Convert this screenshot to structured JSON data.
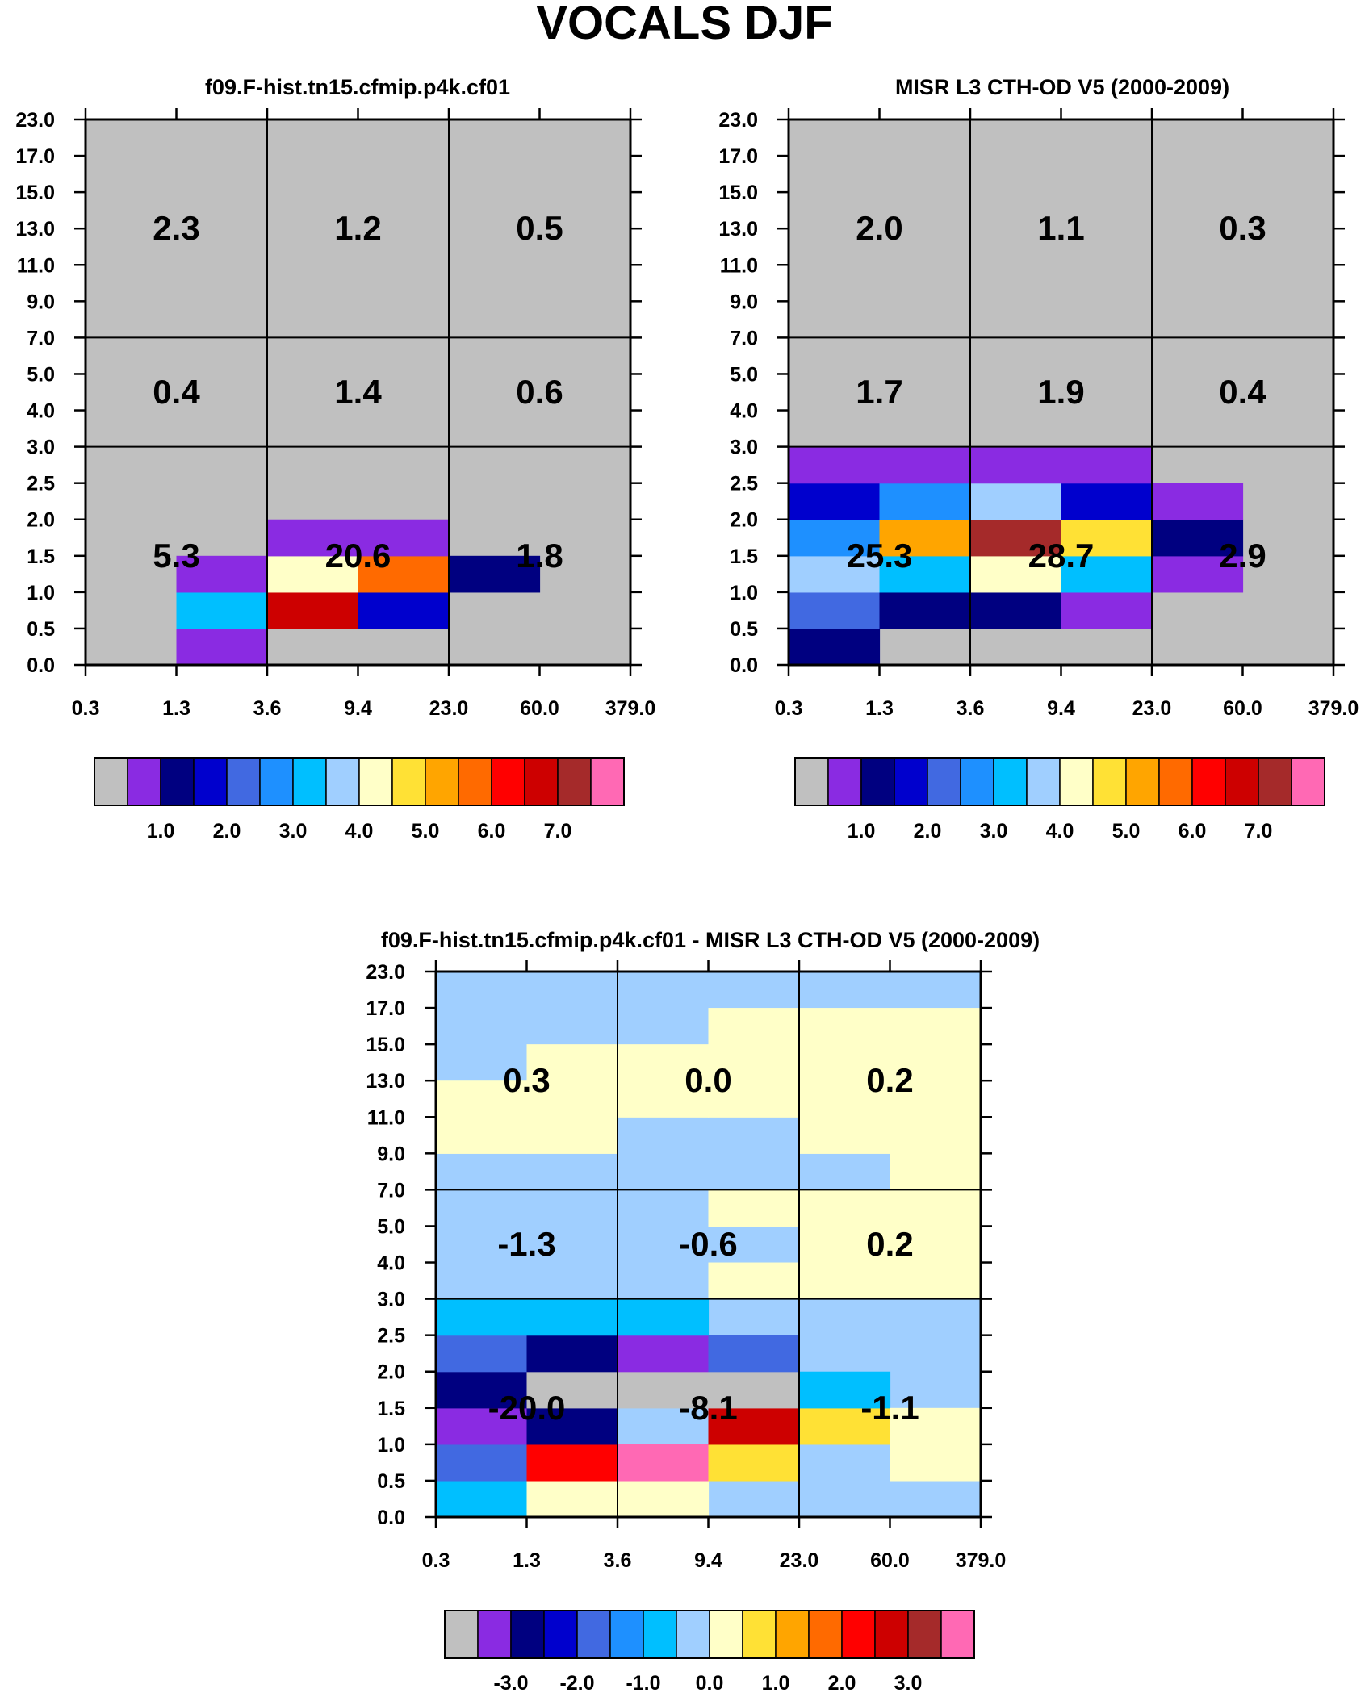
{
  "title": "VOCALS DJF",
  "chart_data": [
    {
      "type": "heatmap",
      "title": "f09.F-hist.tn15.cfmip.p4k.cf01",
      "x_ticks": [
        "0.3",
        "1.3",
        "3.6",
        "9.4",
        "23.0",
        "60.0",
        "379.0"
      ],
      "y_ticks": [
        "0.0",
        "0.5",
        "1.0",
        "1.5",
        "2.0",
        "2.5",
        "3.0",
        "4.0",
        "5.0",
        "7.0",
        "9.0",
        "11.0",
        "13.0",
        "15.0",
        "17.0",
        "23.0"
      ],
      "cells": [
        {
          "c": 1,
          "r": 0,
          "color": "#8a2be2"
        },
        {
          "c": 1,
          "r": 1,
          "color": "#00bfff"
        },
        {
          "c": 1,
          "r": 2,
          "color": "#8a2be2"
        },
        {
          "c": 2,
          "r": 1,
          "color": "#cd0000"
        },
        {
          "c": 2,
          "r": 2,
          "color": "#ffffc8"
        },
        {
          "c": 2,
          "r": 3,
          "color": "#8a2be2"
        },
        {
          "c": 3,
          "r": 1,
          "color": "#0000cd"
        },
        {
          "c": 3,
          "r": 2,
          "color": "#ff6a00"
        },
        {
          "c": 3,
          "r": 3,
          "color": "#8a2be2"
        },
        {
          "c": 4,
          "r": 2,
          "color": "#000080"
        }
      ],
      "region_labels": [
        {
          "col": 0,
          "row": 2,
          "text": "2.3"
        },
        {
          "col": 1,
          "row": 2,
          "text": "1.2"
        },
        {
          "col": 2,
          "row": 2,
          "text": "0.5"
        },
        {
          "col": 0,
          "row": 1,
          "text": "0.4"
        },
        {
          "col": 1,
          "row": 1,
          "text": "1.4"
        },
        {
          "col": 2,
          "row": 1,
          "text": "0.6"
        },
        {
          "col": 0,
          "row": 0,
          "text": "5.3"
        },
        {
          "col": 1,
          "row": 0,
          "text": "20.6"
        },
        {
          "col": 2,
          "row": 0,
          "text": "1.8"
        }
      ],
      "colorbar": {
        "colors": [
          "#c0c0c0",
          "#8a2be2",
          "#000080",
          "#0000cd",
          "#4169e1",
          "#1e90ff",
          "#00bfff",
          "#a0cfff",
          "#ffffc8",
          "#ffe135",
          "#ffa500",
          "#ff6a00",
          "#ff0000",
          "#cd0000",
          "#a52a2a",
          "#ff69b4"
        ],
        "labels": [
          "1.0",
          "2.0",
          "3.0",
          "4.0",
          "5.0",
          "6.0",
          "7.0"
        ]
      }
    },
    {
      "type": "heatmap",
      "title": "MISR L3 CTH-OD V5 (2000-2009)",
      "x_ticks": [
        "0.3",
        "1.3",
        "3.6",
        "9.4",
        "23.0",
        "60.0",
        "379.0"
      ],
      "y_ticks": [
        "0.0",
        "0.5",
        "1.0",
        "1.5",
        "2.0",
        "2.5",
        "3.0",
        "4.0",
        "5.0",
        "7.0",
        "9.0",
        "11.0",
        "13.0",
        "15.0",
        "17.0",
        "23.0"
      ],
      "cells": [
        {
          "c": 0,
          "r": 0,
          "color": "#000080"
        },
        {
          "c": 0,
          "r": 1,
          "color": "#4169e1"
        },
        {
          "c": 0,
          "r": 2,
          "color": "#a0cfff"
        },
        {
          "c": 0,
          "r": 3,
          "color": "#1e90ff"
        },
        {
          "c": 0,
          "r": 4,
          "color": "#0000cd"
        },
        {
          "c": 0,
          "r": 5,
          "color": "#8a2be2"
        },
        {
          "c": 1,
          "r": 1,
          "color": "#000080"
        },
        {
          "c": 1,
          "r": 2,
          "color": "#00bfff"
        },
        {
          "c": 1,
          "r": 3,
          "color": "#ffa500"
        },
        {
          "c": 1,
          "r": 4,
          "color": "#1e90ff"
        },
        {
          "c": 1,
          "r": 5,
          "color": "#8a2be2"
        },
        {
          "c": 2,
          "r": 1,
          "color": "#000080"
        },
        {
          "c": 2,
          "r": 2,
          "color": "#ffffc8"
        },
        {
          "c": 2,
          "r": 3,
          "color": "#a52a2a"
        },
        {
          "c": 2,
          "r": 4,
          "color": "#a0cfff"
        },
        {
          "c": 2,
          "r": 5,
          "color": "#8a2be2"
        },
        {
          "c": 3,
          "r": 1,
          "color": "#8a2be2"
        },
        {
          "c": 3,
          "r": 2,
          "color": "#00bfff"
        },
        {
          "c": 3,
          "r": 3,
          "color": "#ffe135"
        },
        {
          "c": 3,
          "r": 4,
          "color": "#0000cd"
        },
        {
          "c": 3,
          "r": 5,
          "color": "#8a2be2"
        },
        {
          "c": 4,
          "r": 2,
          "color": "#8a2be2"
        },
        {
          "c": 4,
          "r": 3,
          "color": "#000080"
        },
        {
          "c": 4,
          "r": 4,
          "color": "#8a2be2"
        }
      ],
      "region_labels": [
        {
          "col": 0,
          "row": 2,
          "text": "2.0"
        },
        {
          "col": 1,
          "row": 2,
          "text": "1.1"
        },
        {
          "col": 2,
          "row": 2,
          "text": "0.3"
        },
        {
          "col": 0,
          "row": 1,
          "text": "1.7"
        },
        {
          "col": 1,
          "row": 1,
          "text": "1.9"
        },
        {
          "col": 2,
          "row": 1,
          "text": "0.4"
        },
        {
          "col": 0,
          "row": 0,
          "text": "25.3"
        },
        {
          "col": 1,
          "row": 0,
          "text": "28.7"
        },
        {
          "col": 2,
          "row": 0,
          "text": "2.9"
        }
      ],
      "colorbar": {
        "colors": [
          "#c0c0c0",
          "#8a2be2",
          "#000080",
          "#0000cd",
          "#4169e1",
          "#1e90ff",
          "#00bfff",
          "#a0cfff",
          "#ffffc8",
          "#ffe135",
          "#ffa500",
          "#ff6a00",
          "#ff0000",
          "#cd0000",
          "#a52a2a",
          "#ff69b4"
        ],
        "labels": [
          "1.0",
          "2.0",
          "3.0",
          "4.0",
          "5.0",
          "6.0",
          "7.0"
        ]
      }
    },
    {
      "type": "heatmap",
      "title": "f09.F-hist.tn15.cfmip.p4k.cf01 - MISR L3 CTH-OD V5 (2000-2009)",
      "x_ticks": [
        "0.3",
        "1.3",
        "3.6",
        "9.4",
        "23.0",
        "60.0",
        "379.0"
      ],
      "y_ticks": [
        "0.0",
        "0.5",
        "1.0",
        "1.5",
        "2.0",
        "2.5",
        "3.0",
        "4.0",
        "5.0",
        "7.0",
        "9.0",
        "11.0",
        "13.0",
        "15.0",
        "17.0",
        "23.0"
      ],
      "background": "#a0cfff",
      "cells": [
        {
          "c": 0,
          "r": 0,
          "color": "#00bfff"
        },
        {
          "c": 0,
          "r": 1,
          "color": "#4169e1"
        },
        {
          "c": 0,
          "r": 2,
          "color": "#8a2be2"
        },
        {
          "c": 0,
          "r": 3,
          "color": "#000080"
        },
        {
          "c": 0,
          "r": 4,
          "color": "#4169e1"
        },
        {
          "c": 0,
          "r": 5,
          "color": "#00bfff"
        },
        {
          "c": 0,
          "r": 10,
          "color": "#ffffc8"
        },
        {
          "c": 0,
          "r": 11,
          "color": "#ffffc8"
        },
        {
          "c": 1,
          "r": 0,
          "color": "#ffffc8"
        },
        {
          "c": 1,
          "r": 1,
          "color": "#ff0000"
        },
        {
          "c": 1,
          "r": 2,
          "color": "#000080"
        },
        {
          "c": 1,
          "r": 3,
          "color": "#c0c0c0"
        },
        {
          "c": 1,
          "r": 4,
          "color": "#000080"
        },
        {
          "c": 1,
          "r": 5,
          "color": "#00bfff"
        },
        {
          "c": 1,
          "r": 10,
          "color": "#ffffc8"
        },
        {
          "c": 1,
          "r": 11,
          "color": "#ffffc8"
        },
        {
          "c": 1,
          "r": 12,
          "color": "#ffffc8"
        },
        {
          "c": 2,
          "r": 0,
          "color": "#ffffc8"
        },
        {
          "c": 2,
          "r": 1,
          "color": "#ff69b4"
        },
        {
          "c": 2,
          "r": 3,
          "color": "#c0c0c0"
        },
        {
          "c": 2,
          "r": 4,
          "color": "#8a2be2"
        },
        {
          "c": 2,
          "r": 5,
          "color": "#00bfff"
        },
        {
          "c": 2,
          "r": 11,
          "color": "#ffffc8"
        },
        {
          "c": 2,
          "r": 12,
          "color": "#ffffc8"
        },
        {
          "c": 3,
          "r": 1,
          "color": "#ffe135"
        },
        {
          "c": 3,
          "r": 2,
          "color": "#cd0000"
        },
        {
          "c": 3,
          "r": 3,
          "color": "#c0c0c0"
        },
        {
          "c": 3,
          "r": 4,
          "color": "#4169e1"
        },
        {
          "c": 3,
          "r": 6,
          "color": "#ffffc8"
        },
        {
          "c": 3,
          "r": 8,
          "color": "#ffffc8"
        },
        {
          "c": 3,
          "r": 11,
          "color": "#ffffc8"
        },
        {
          "c": 3,
          "r": 12,
          "color": "#ffffc8"
        },
        {
          "c": 3,
          "r": 13,
          "color": "#ffffc8"
        },
        {
          "c": 4,
          "r": 2,
          "color": "#ffe135"
        },
        {
          "c": 4,
          "r": 3,
          "color": "#00bfff"
        },
        {
          "c": 4,
          "r": 6,
          "color": "#ffffc8"
        },
        {
          "c": 4,
          "r": 7,
          "color": "#ffffc8"
        },
        {
          "c": 4,
          "r": 8,
          "color": "#ffffc8"
        },
        {
          "c": 4,
          "r": 10,
          "color": "#ffffc8"
        },
        {
          "c": 4,
          "r": 11,
          "color": "#ffffc8"
        },
        {
          "c": 4,
          "r": 12,
          "color": "#ffffc8"
        },
        {
          "c": 4,
          "r": 13,
          "color": "#ffffc8"
        },
        {
          "c": 5,
          "r": 1,
          "color": "#ffffc8"
        },
        {
          "c": 5,
          "r": 2,
          "color": "#ffffc8"
        },
        {
          "c": 5,
          "r": 6,
          "color": "#ffffc8"
        },
        {
          "c": 5,
          "r": 7,
          "color": "#ffffc8"
        },
        {
          "c": 5,
          "r": 8,
          "color": "#ffffc8"
        },
        {
          "c": 5,
          "r": 9,
          "color": "#ffffc8"
        },
        {
          "c": 5,
          "r": 10,
          "color": "#ffffc8"
        },
        {
          "c": 5,
          "r": 11,
          "color": "#ffffc8"
        },
        {
          "c": 5,
          "r": 12,
          "color": "#ffffc8"
        },
        {
          "c": 5,
          "r": 13,
          "color": "#ffffc8"
        }
      ],
      "region_labels": [
        {
          "col": 0,
          "row": 2,
          "text": "0.3"
        },
        {
          "col": 1,
          "row": 2,
          "text": "0.0"
        },
        {
          "col": 2,
          "row": 2,
          "text": "0.2"
        },
        {
          "col": 0,
          "row": 1,
          "text": "-1.3"
        },
        {
          "col": 1,
          "row": 1,
          "text": "-0.6"
        },
        {
          "col": 2,
          "row": 1,
          "text": "0.2"
        },
        {
          "col": 0,
          "row": 0,
          "text": "-20.0"
        },
        {
          "col": 1,
          "row": 0,
          "text": "-8.1"
        },
        {
          "col": 2,
          "row": 0,
          "text": "-1.1"
        }
      ],
      "colorbar": {
        "colors": [
          "#c0c0c0",
          "#8a2be2",
          "#000080",
          "#0000cd",
          "#4169e1",
          "#1e90ff",
          "#00bfff",
          "#a0cfff",
          "#ffffc8",
          "#ffe135",
          "#ffa500",
          "#ff6a00",
          "#ff0000",
          "#cd0000",
          "#a52a2a",
          "#ff69b4"
        ],
        "labels": [
          "-3.0",
          "-2.0",
          "-1.0",
          "0.0",
          "1.0",
          "2.0",
          "3.0"
        ]
      }
    }
  ]
}
